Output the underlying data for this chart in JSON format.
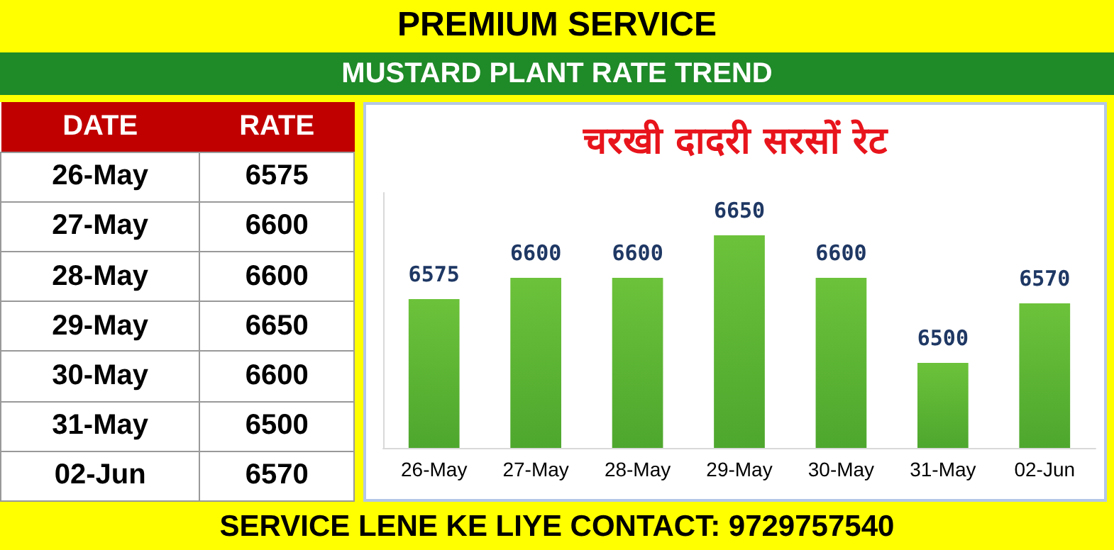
{
  "chart_data": [
    {
      "type": "other",
      "annotations": [
        "DATE",
        "RATE"
      ],
      "categories": [
        "26-May",
        "27-May",
        "28-May",
        "29-May",
        "30-May",
        "31-May",
        "02-Jun"
      ],
      "values": [
        6575,
        6600,
        6600,
        6650,
        6600,
        6500,
        6570
      ],
      "data_labels": true
    },
    {
      "type": "bar",
      "title": "चरखी दादरी सरसों रेट",
      "subtitle": "MUSTARD PLANT RATE TREND",
      "annotations": [
        "PREMIUM SERVICE",
        "SERVICE LENE KE LIYE CONTACT: 9729757540"
      ],
      "categories": [
        "26-May",
        "27-May",
        "28-May",
        "29-May",
        "30-May",
        "31-May",
        "02-Jun"
      ],
      "values": [
        6575,
        6600,
        6600,
        6650,
        6600,
        6500,
        6570
      ],
      "color": "#4ea72e",
      "ylim": [
        6400,
        6700
      ],
      "tick_labels": "x",
      "data_labels": true,
      "grid": false
    }
  ]
}
